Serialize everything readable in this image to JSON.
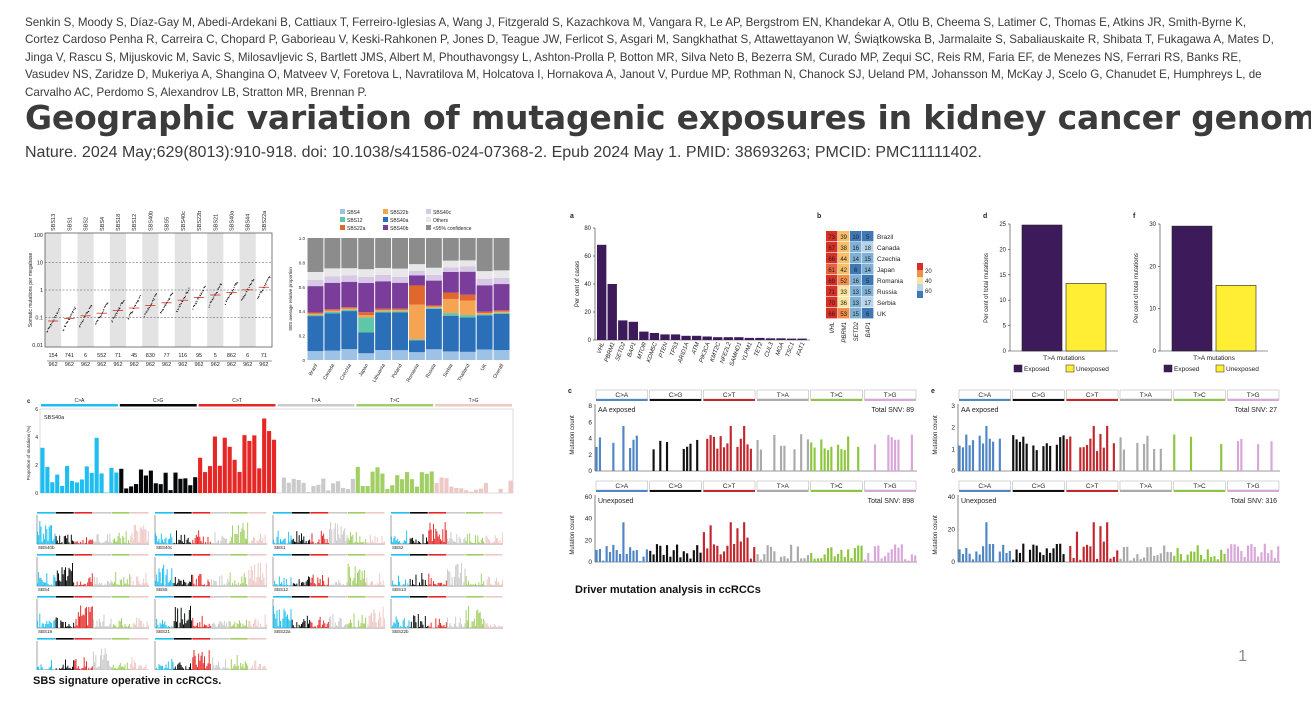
{
  "authors": "Senkin S, Moody S, Díaz-Gay M, Abedi-Ardekani B, Cattiaux T, Ferreiro-Iglesias A, Wang J, Fitzgerald S, Kazachkova M, Vangara R, Le AP, Bergstrom EN, Khandekar A, Otlu B, Cheema S, Latimer C, Thomas E, Atkins JR, Smith-Byrne K, Cortez Cardoso Penha R, Carreira C, Chopard P, Gaborieau V, Keski-Rahkonen P, Jones D, Teague JW, Ferlicot S, Asgari M, Sangkhathat S, Attawettayanon W, Świątkowska B, Jarmalaite S, Sabaliauskaite R, Shibata T, Fukagawa A, Mates D, Jinga V, Rascu S, Mijuskovic M, Savic S, Milosavljevic S, Bartlett JMS, Albert M, Phouthavongsy L, Ashton-Prolla P, Botton MR, Silva Neto B, Bezerra SM, Curado MP, Zequi SC, Reis RM, Faria EF, de Menezes NS, Ferrari RS, Banks RE, Vasudev NS, Zaridze D, Mukeriya A, Shangina O, Matveev V, Foretova L, Navratilova M, Holcatova I, Hornakova A, Janout V, Purdue MP, Rothman N, Chanock SJ, Ueland PM, Johansson M, McKay J, Scelo G, Chanudet E, Humphreys L, de Carvalho AC, Perdomo S, Alexandrov LB, Stratton MR, Brennan P.",
  "title": "Geographic variation of mutagenic exposures in kidney cancer genomes.",
  "citation": "Nature. 2024 May;629(8013):910-918. doi: 10.1038/s41586-024-07368-2. Epub 2024 May 1. PMID: 38693263; PMCID: PMC11111402.",
  "page_number": "1",
  "captions": {
    "left": "SBS signature operative in ccRCCs.",
    "right": "Driver mutation analysis in ccRCCs"
  },
  "mutation_classes": [
    "C>A",
    "C>G",
    "C>T",
    "T>A",
    "T>C",
    "T>G"
  ],
  "class_colors": [
    "#1ebff0",
    "#050708",
    "#e62725",
    "#cbcacb",
    "#a1cf64",
    "#edc8c5"
  ],
  "panel_a_left": {
    "ylabel": "Somatic mutations per megabase",
    "yticks": [
      "100",
      "10",
      "1",
      "0.1",
      "0.01"
    ],
    "signatures": [
      "SBS13",
      "SBS1",
      "SBS2",
      "SBS4",
      "SBS18",
      "SBS12",
      "SBS40b",
      "SBS5",
      "SBS40c",
      "SBS22b",
      "SBS21",
      "SBS40a",
      "SBS44",
      "SBS22a"
    ],
    "top_counts": [
      "154",
      "741",
      "6",
      "552",
      "71",
      "45",
      "830",
      "77",
      "116",
      "95",
      "5",
      "862",
      "6",
      "71"
    ],
    "bottom_counts": [
      "962",
      "962",
      "962",
      "962",
      "962",
      "962",
      "962",
      "962",
      "962",
      "962",
      "962",
      "962",
      "962",
      "962"
    ]
  },
  "panel_b_left": {
    "ylabel": "SBS average relative proportion",
    "yticks": [
      "1.0",
      "0.8",
      "0.6",
      "0.4",
      "0.2",
      "0"
    ],
    "countries": [
      "Brazil",
      "Canada",
      "Czechia",
      "Japan",
      "Lithuania",
      "Poland",
      "Romania",
      "Russia",
      "Serbia",
      "Thailand",
      "UK",
      "Overall"
    ],
    "legend": [
      {
        "label": "SBS4",
        "color": "#9cc3e6"
      },
      {
        "label": "SBS22b",
        "color": "#f5a454"
      },
      {
        "label": "SBS40c",
        "color": "#d6c8e6"
      },
      {
        "label": "SBS12",
        "color": "#5fc6a8"
      },
      {
        "label": "SBS40a",
        "color": "#2a6fb8"
      },
      {
        "label": "Others",
        "color": "#e8e8e8"
      },
      {
        "label": "SBS22a",
        "color": "#e2672f"
      },
      {
        "label": "SBS40b",
        "color": "#7b3d9a"
      },
      {
        "label": "<95% confidence",
        "color": "#8c8c8c"
      }
    ]
  },
  "panel_c_left": {
    "ylabel": "Proportion of mutations (%)",
    "label": "SBS40a",
    "yticks": [
      "6",
      "4",
      "2",
      "0"
    ],
    "small_panels": [
      "SBS40b",
      "SBS40c",
      "SBS1",
      "SBS2",
      "SBS4",
      "SBS5",
      "SBS12",
      "SBS13",
      "SBS18",
      "SBS21",
      "SBS22a",
      "SBS22b",
      "SBS44",
      "SBS_H"
    ]
  },
  "panel_a_right": {
    "ylabel": "Per cent of cases",
    "yticks": [
      "80",
      "60",
      "40",
      "20",
      "0"
    ],
    "genes": [
      "VHL",
      "PBRM1",
      "SETD2",
      "BAP1",
      "MTOR",
      "KDM5C",
      "PTEN",
      "TP53",
      "ARID1A",
      "ATM",
      "PIK3CA",
      "KMT2C",
      "NFE2L2",
      "SAMHD1",
      "YLPM1",
      "TET2",
      "CUL3",
      "MGA",
      "TSC1",
      "FAT1"
    ],
    "values": [
      68,
      40,
      14,
      13,
      6,
      5,
      4,
      4,
      3,
      3,
      2.5,
      2,
      2,
      2,
      1.5,
      1.5,
      1.2,
      1.2,
      1,
      1
    ],
    "ylim": [
      0,
      80
    ]
  },
  "panel_b_right": {
    "genes": [
      "VHL",
      "PBRM1",
      "SETD2",
      "BAP1"
    ],
    "countries": [
      "Brazil",
      "Canada",
      "Czechia",
      "Japan",
      "Romania",
      "Russia",
      "Serbia",
      "UK"
    ],
    "cells": [
      [
        "73",
        "39",
        "10",
        "5"
      ],
      [
        "67",
        "38",
        "16",
        "18"
      ],
      [
        "66",
        "44",
        "14",
        "15"
      ],
      [
        "61",
        "42",
        "6",
        "14"
      ],
      [
        "69",
        "52",
        "16",
        "5"
      ],
      [
        "71",
        "33",
        "13",
        "15"
      ],
      [
        "70",
        "36",
        "13",
        "17"
      ],
      [
        "66",
        "53",
        "15",
        "6"
      ]
    ],
    "colorbar_ticks": [
      "20",
      "40",
      "60"
    ]
  },
  "panel_d": {
    "label": "d",
    "ylabel": "Per cent of total mutations",
    "xlabel": "T>A mutations",
    "yticks": [
      "25",
      "20",
      "15",
      "10",
      "5",
      "0"
    ],
    "ylim": [
      0,
      25
    ],
    "values": [
      24.8,
      13.3
    ]
  },
  "panel_f": {
    "label": "f",
    "ylabel": "Per cent of total mutations",
    "xlabel": "T>A mutations",
    "yticks": [
      "30",
      "20",
      "10",
      "0"
    ],
    "ylim": [
      0,
      30
    ],
    "values": [
      29.5,
      15.5
    ]
  },
  "legend_exposure": [
    {
      "label": "Exposed",
      "color": "#3d1a5a"
    },
    {
      "label": "Unexposed",
      "color": "#ffee33"
    }
  ],
  "panel_c_right": {
    "ylabel": "Mutation count",
    "top": {
      "label": "AA exposed",
      "total": "Total SNV: 89",
      "yticks": [
        "8",
        "6",
        "4",
        "2",
        "0"
      ]
    },
    "bottom": {
      "label": "Unexposed",
      "total": "Total SNV: 898",
      "yticks": [
        "60",
        "40",
        "20",
        "0"
      ]
    }
  },
  "panel_e_right": {
    "ylabel": "Mutation count",
    "top": {
      "label": "AA exposed",
      "total": "Total SNV: 27",
      "yticks": [
        "3",
        "2",
        "1",
        "0"
      ]
    },
    "bottom": {
      "label": "Unexposed",
      "total": "Total SNV: 316",
      "yticks": [
        "40",
        "20",
        "0"
      ]
    }
  },
  "chart_data": [
    {
      "type": "bar",
      "title": "",
      "ylabel": "Per cent of cases",
      "categories": [
        "VHL",
        "PBRM1",
        "SETD2",
        "BAP1",
        "MTOR",
        "KDM5C",
        "PTEN",
        "TP53",
        "ARID1A",
        "ATM",
        "PIK3CA",
        "KMT2C",
        "NFE2L2",
        "SAMHD1",
        "YLPM1",
        "TET2",
        "CUL3",
        "MGA",
        "TSC1",
        "FAT1"
      ],
      "values": [
        68,
        40,
        14,
        13,
        6,
        5,
        4,
        4,
        3,
        3,
        2.5,
        2,
        2,
        2,
        1.5,
        1.5,
        1.2,
        1.2,
        1,
        1
      ],
      "ylim": [
        0,
        80
      ]
    },
    {
      "type": "bar",
      "xlabel": "T>A mutations",
      "ylabel": "Per cent of total mutations",
      "categories": [
        "Exposed",
        "Unexposed"
      ],
      "values": [
        24.8,
        13.3
      ],
      "ylim": [
        0,
        25
      ]
    },
    {
      "type": "bar",
      "xlabel": "T>A mutations",
      "ylabel": "Per cent of total mutations",
      "categories": [
        "Exposed",
        "Unexposed"
      ],
      "values": [
        29.5,
        15.5
      ],
      "ylim": [
        0,
        30
      ]
    }
  ]
}
